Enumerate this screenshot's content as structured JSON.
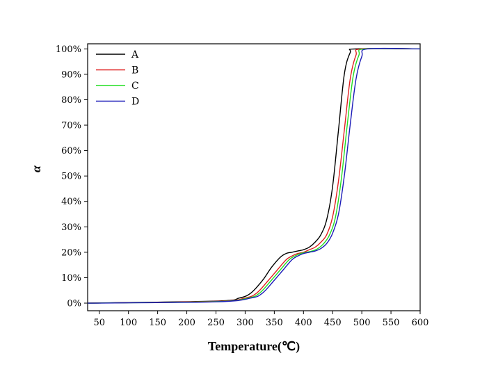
{
  "chart_data": {
    "type": "line",
    "title": "",
    "xlabel": "Temperature(℃)",
    "ylabel": "α",
    "xlim": [
      30,
      600
    ],
    "ylim": [
      -0.03,
      1.02
    ],
    "xticks": [
      {
        "value": 50,
        "label": "50"
      },
      {
        "value": 100,
        "label": "100"
      },
      {
        "value": 150,
        "label": "150"
      },
      {
        "value": 200,
        "label": "200"
      },
      {
        "value": 250,
        "label": "250"
      },
      {
        "value": 300,
        "label": "300"
      },
      {
        "value": 350,
        "label": "350"
      },
      {
        "value": 400,
        "label": "400"
      },
      {
        "value": 450,
        "label": "450"
      },
      {
        "value": 500,
        "label": "500"
      },
      {
        "value": 550,
        "label": "550"
      },
      {
        "value": 600,
        "label": "600"
      }
    ],
    "yticks": [
      {
        "value": 0.0,
        "label": "0%"
      },
      {
        "value": 0.1,
        "label": "10%"
      },
      {
        "value": 0.2,
        "label": "20%"
      },
      {
        "value": 0.3,
        "label": "30%"
      },
      {
        "value": 0.4,
        "label": "40%"
      },
      {
        "value": 0.5,
        "label": "50%"
      },
      {
        "value": 0.6,
        "label": "60%"
      },
      {
        "value": 0.7,
        "label": "70%"
      },
      {
        "value": 0.8,
        "label": "80%"
      },
      {
        "value": 0.9,
        "label": "90%"
      },
      {
        "value": 1.0,
        "label": "100%"
      }
    ],
    "grid": false,
    "legend_position": "top-left",
    "series": [
      {
        "name": "A",
        "color": "#000000",
        "x": [
          30,
          250,
          290,
          310,
          330,
          345,
          360,
          370,
          380,
          390,
          400,
          410,
          420,
          430,
          440,
          450,
          460,
          470,
          480,
          490,
          600
        ],
        "y": [
          0.0,
          0.008,
          0.02,
          0.04,
          0.09,
          0.14,
          0.18,
          0.195,
          0.2,
          0.205,
          0.21,
          0.22,
          0.24,
          0.27,
          0.33,
          0.46,
          0.68,
          0.9,
          0.985,
          1.0,
          1.0
        ]
      },
      {
        "name": "B",
        "color": "#e02020",
        "x": [
          30,
          250,
          300,
          320,
          340,
          355,
          370,
          380,
          390,
          400,
          410,
          420,
          430,
          440,
          450,
          460,
          470,
          480,
          490,
          500,
          600
        ],
        "y": [
          0.0,
          0.007,
          0.02,
          0.04,
          0.09,
          0.13,
          0.17,
          0.185,
          0.195,
          0.2,
          0.21,
          0.22,
          0.24,
          0.27,
          0.34,
          0.48,
          0.68,
          0.88,
          0.975,
          1.0,
          1.0
        ]
      },
      {
        "name": "C",
        "color": "#22dd22",
        "x": [
          30,
          250,
          305,
          325,
          345,
          360,
          375,
          385,
          395,
          405,
          415,
          425,
          435,
          445,
          455,
          465,
          475,
          485,
          495,
          505,
          600
        ],
        "y": [
          0.0,
          0.006,
          0.02,
          0.04,
          0.09,
          0.13,
          0.17,
          0.185,
          0.195,
          0.2,
          0.205,
          0.215,
          0.235,
          0.27,
          0.34,
          0.49,
          0.7,
          0.89,
          0.975,
          1.0,
          1.0
        ]
      },
      {
        "name": "D",
        "color": "#1c1cb8",
        "x": [
          30,
          250,
          310,
          330,
          350,
          365,
          380,
          390,
          400,
          410,
          420,
          430,
          440,
          450,
          460,
          470,
          480,
          490,
          500,
          510,
          600
        ],
        "y": [
          0.0,
          0.005,
          0.02,
          0.04,
          0.09,
          0.13,
          0.17,
          0.185,
          0.195,
          0.2,
          0.205,
          0.215,
          0.235,
          0.275,
          0.35,
          0.5,
          0.7,
          0.88,
          0.97,
          1.0,
          1.0
        ]
      }
    ]
  }
}
